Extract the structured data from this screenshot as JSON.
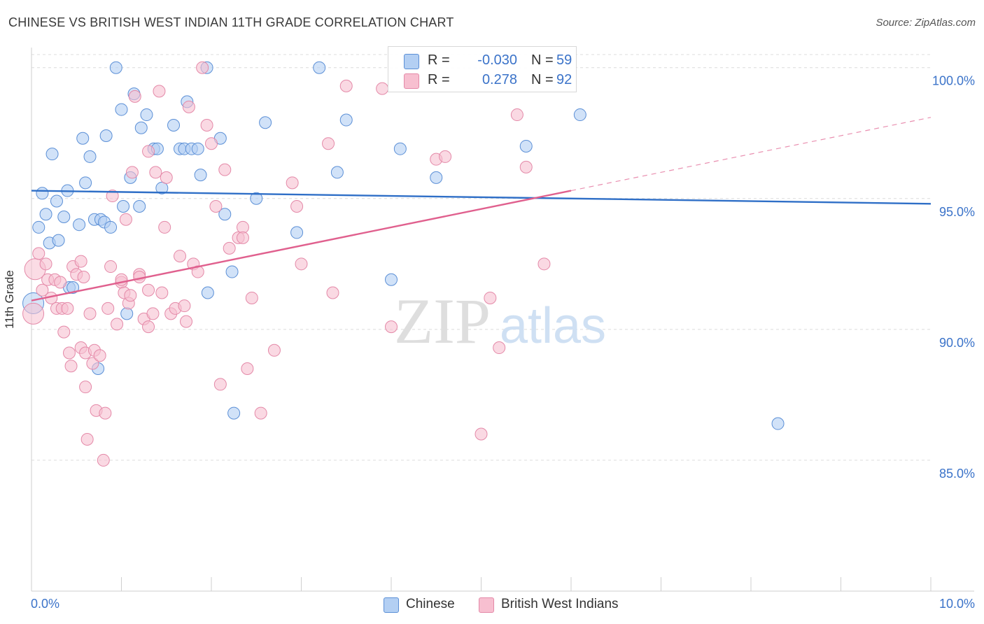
{
  "header": {
    "title": "CHINESE VS BRITISH WEST INDIAN 11TH GRADE CORRELATION CHART",
    "source": "Source: ZipAtlas.com"
  },
  "watermark": {
    "zip": "ZIP",
    "atlas": "atlas"
  },
  "legend_top": {
    "rows": [
      {
        "r_label": "R =",
        "r_value": "-0.030",
        "n_label": "N =",
        "n_value": "59"
      },
      {
        "r_label": "R =",
        "r_value": "0.278",
        "n_label": "N =",
        "n_value": "92"
      }
    ]
  },
  "legend_bottom": {
    "items": [
      {
        "label": "Chinese"
      },
      {
        "label": "British West Indians"
      }
    ]
  },
  "colors": {
    "chinese_fill": "#b3cff3",
    "chinese_stroke": "#5b8fd6",
    "chinese_line": "#2f6fc7",
    "bwi_fill": "#f7bfd0",
    "bwi_stroke": "#e489a8",
    "bwi_line": "#e0608e",
    "grid": "#dcdcdc",
    "axis_text": "#3b73c9"
  },
  "chart_data": {
    "type": "scatter",
    "xlabel": "",
    "ylabel": "11th Grade",
    "xlim": [
      0,
      10
    ],
    "ylim": [
      80,
      100.5
    ],
    "x_tick_labels": [
      {
        "value": 0,
        "label": "0.0%"
      },
      {
        "value": 10,
        "label": "10.0%"
      }
    ],
    "y_tick_labels": [
      {
        "value": 100,
        "label": "100.0%"
      },
      {
        "value": 95,
        "label": "95.0%"
      },
      {
        "value": 90,
        "label": "90.0%"
      },
      {
        "value": 85,
        "label": "85.0%"
      }
    ],
    "y_gridlines": [
      100.5,
      100,
      95,
      90,
      85
    ],
    "grid": true,
    "legend_position": "top-center",
    "series": [
      {
        "name": "Chinese",
        "color": "#5b8fd6",
        "trend": {
          "x0": 0,
          "y0": 95.3,
          "x1": 10,
          "y1": 94.8,
          "solid_to": 10
        },
        "points": [
          [
            0.02,
            91.0,
            1
          ],
          [
            0.08,
            93.9,
            0
          ],
          [
            0.12,
            95.2,
            0
          ],
          [
            0.16,
            94.4,
            0
          ],
          [
            0.2,
            93.3,
            0
          ],
          [
            0.23,
            96.7,
            0
          ],
          [
            0.28,
            94.9,
            0
          ],
          [
            0.36,
            94.3,
            0
          ],
          [
            0.4,
            95.3,
            0
          ],
          [
            0.42,
            91.6,
            0
          ],
          [
            0.46,
            91.6,
            0
          ],
          [
            0.53,
            94.0,
            0
          ],
          [
            0.57,
            97.3,
            0
          ],
          [
            0.6,
            95.6,
            0
          ],
          [
            0.65,
            96.6,
            0
          ],
          [
            0.7,
            94.2,
            0
          ],
          [
            0.77,
            94.2,
            0
          ],
          [
            0.81,
            94.1,
            0
          ],
          [
            0.83,
            97.4,
            0
          ],
          [
            0.88,
            93.9,
            0
          ],
          [
            0.94,
            100.0,
            0
          ],
          [
            1.0,
            98.4,
            0
          ],
          [
            1.02,
            94.7,
            0
          ],
          [
            1.06,
            90.6,
            0
          ],
          [
            1.1,
            95.8,
            0
          ],
          [
            1.14,
            99.0,
            0
          ],
          [
            1.2,
            94.7,
            0
          ],
          [
            1.22,
            97.7,
            0
          ],
          [
            1.28,
            98.2,
            0
          ],
          [
            1.36,
            96.9,
            0
          ],
          [
            1.4,
            96.9,
            0
          ],
          [
            1.45,
            95.4,
            0
          ],
          [
            1.58,
            97.8,
            0
          ],
          [
            1.65,
            96.9,
            0
          ],
          [
            1.7,
            96.9,
            0
          ],
          [
            1.73,
            98.7,
            0
          ],
          [
            1.78,
            96.9,
            0
          ],
          [
            1.85,
            96.9,
            0
          ],
          [
            1.88,
            95.9,
            0
          ],
          [
            1.95,
            100.0,
            0
          ],
          [
            1.96,
            91.4,
            0
          ],
          [
            2.1,
            97.3,
            0
          ],
          [
            2.15,
            94.4,
            0
          ],
          [
            2.23,
            92.2,
            0
          ],
          [
            2.25,
            86.8,
            0
          ],
          [
            2.5,
            95.0,
            0
          ],
          [
            2.6,
            97.9,
            0
          ],
          [
            2.95,
            93.7,
            0
          ],
          [
            3.2,
            100.0,
            0
          ],
          [
            3.4,
            96.0,
            0
          ],
          [
            3.5,
            98.0,
            0
          ],
          [
            4.0,
            91.9,
            0
          ],
          [
            4.1,
            96.9,
            0
          ],
          [
            4.5,
            95.8,
            0
          ],
          [
            5.5,
            97.0,
            0
          ],
          [
            6.1,
            98.2,
            0
          ],
          [
            8.3,
            86.4,
            0
          ],
          [
            0.74,
            88.5,
            0
          ],
          [
            0.3,
            93.4,
            0
          ]
        ]
      },
      {
        "name": "British West Indians",
        "color": "#e489a8",
        "trend": {
          "x0": 0,
          "y0": 91.1,
          "x1": 10,
          "y1": 98.1,
          "solid_to": 6.0
        },
        "points": [
          [
            0.02,
            90.6,
            1
          ],
          [
            0.04,
            92.3,
            1
          ],
          [
            0.08,
            92.9,
            0
          ],
          [
            0.12,
            91.5,
            0
          ],
          [
            0.16,
            92.5,
            0
          ],
          [
            0.18,
            91.9,
            0
          ],
          [
            0.22,
            91.2,
            0
          ],
          [
            0.26,
            91.9,
            0
          ],
          [
            0.28,
            90.8,
            0
          ],
          [
            0.32,
            91.8,
            0
          ],
          [
            0.34,
            90.8,
            0
          ],
          [
            0.36,
            89.9,
            0
          ],
          [
            0.4,
            90.8,
            0
          ],
          [
            0.42,
            89.1,
            0
          ],
          [
            0.44,
            88.6,
            0
          ],
          [
            0.46,
            92.4,
            0
          ],
          [
            0.5,
            92.1,
            0
          ],
          [
            0.55,
            89.3,
            0
          ],
          [
            0.58,
            92.0,
            0
          ],
          [
            0.6,
            89.1,
            0
          ],
          [
            0.6,
            87.8,
            0
          ],
          [
            0.62,
            85.8,
            0
          ],
          [
            0.65,
            90.6,
            0
          ],
          [
            0.68,
            88.7,
            0
          ],
          [
            0.7,
            89.2,
            0
          ],
          [
            0.72,
            86.9,
            0
          ],
          [
            0.76,
            89.0,
            0
          ],
          [
            0.8,
            85.0,
            0
          ],
          [
            0.82,
            86.8,
            0
          ],
          [
            0.85,
            90.8,
            0
          ],
          [
            0.88,
            92.4,
            0
          ],
          [
            0.9,
            95.1,
            0
          ],
          [
            0.95,
            90.2,
            0
          ],
          [
            1.0,
            91.8,
            0
          ],
          [
            1.03,
            91.4,
            0
          ],
          [
            1.05,
            94.2,
            0
          ],
          [
            1.08,
            91.0,
            0
          ],
          [
            1.1,
            91.3,
            0
          ],
          [
            1.12,
            96.0,
            0
          ],
          [
            1.15,
            98.9,
            0
          ],
          [
            1.2,
            92.1,
            0
          ],
          [
            1.25,
            90.4,
            0
          ],
          [
            1.3,
            90.1,
            0
          ],
          [
            1.3,
            91.5,
            0
          ],
          [
            1.35,
            90.6,
            0
          ],
          [
            1.38,
            96.0,
            0
          ],
          [
            1.42,
            99.1,
            0
          ],
          [
            1.45,
            91.4,
            0
          ],
          [
            1.48,
            93.9,
            0
          ],
          [
            1.5,
            95.8,
            0
          ],
          [
            1.55,
            90.6,
            0
          ],
          [
            1.6,
            90.8,
            0
          ],
          [
            1.65,
            92.8,
            0
          ],
          [
            1.7,
            90.9,
            0
          ],
          [
            1.72,
            90.3,
            0
          ],
          [
            1.75,
            98.5,
            0
          ],
          [
            1.8,
            92.5,
            0
          ],
          [
            1.85,
            92.2,
            0
          ],
          [
            1.9,
            100.0,
            0
          ],
          [
            1.95,
            97.8,
            0
          ],
          [
            2.0,
            97.1,
            0
          ],
          [
            2.05,
            94.7,
            0
          ],
          [
            2.1,
            87.9,
            0
          ],
          [
            2.15,
            96.1,
            0
          ],
          [
            2.2,
            93.1,
            0
          ],
          [
            2.3,
            93.5,
            0
          ],
          [
            2.35,
            93.9,
            0
          ],
          [
            2.4,
            88.5,
            0
          ],
          [
            2.45,
            91.2,
            0
          ],
          [
            2.55,
            86.8,
            0
          ],
          [
            2.7,
            89.2,
            0
          ],
          [
            2.9,
            95.6,
            0
          ],
          [
            2.95,
            94.7,
            0
          ],
          [
            3.0,
            92.5,
            0
          ],
          [
            3.3,
            97.1,
            0
          ],
          [
            3.35,
            91.4,
            0
          ],
          [
            3.5,
            99.3,
            0
          ],
          [
            3.9,
            99.2,
            0
          ],
          [
            4.0,
            90.1,
            0
          ],
          [
            4.5,
            96.5,
            0
          ],
          [
            4.6,
            96.6,
            0
          ],
          [
            5.0,
            86.0,
            0
          ],
          [
            5.1,
            91.2,
            0
          ],
          [
            5.2,
            89.3,
            0
          ],
          [
            5.4,
            98.2,
            0
          ],
          [
            5.5,
            96.2,
            0
          ],
          [
            5.7,
            92.5,
            0
          ],
          [
            1.0,
            91.9,
            0
          ],
          [
            0.55,
            92.6,
            0
          ],
          [
            1.3,
            96.8,
            0
          ],
          [
            2.35,
            93.5,
            0
          ],
          [
            1.2,
            92.0,
            0
          ]
        ]
      }
    ]
  }
}
